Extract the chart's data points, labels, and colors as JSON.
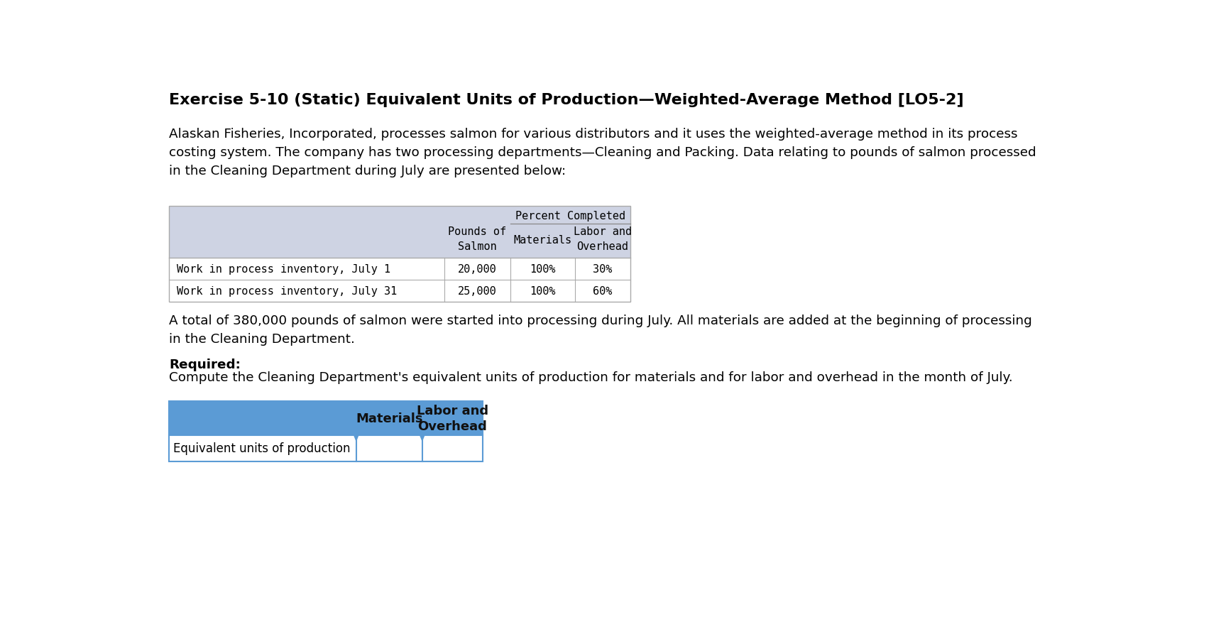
{
  "title": "Exercise 5-10 (Static) Equivalent Units of Production—Weighted-Average Method [LO5-2]",
  "body_text": "Alaskan Fisheries, Incorporated, processes salmon for various distributors and it uses the weighted-average method in its process\ncosting system. The company has two processing departments—Cleaning and Packing. Data relating to pounds of salmon processed\nin the Cleaning Department during July are presented below:",
  "table1_header_bg": "#ced3e3",
  "table1_percent_label": "Percent Completed",
  "table1_rows": [
    [
      "Work in process inventory, July 1",
      "20,000",
      "100%",
      "30%"
    ],
    [
      "Work in process inventory, July 31",
      "25,000",
      "100%",
      "60%"
    ]
  ],
  "middle_text": "A total of 380,000 pounds of salmon were started into processing during July. All materials are added at the beginning of processing\nin the Cleaning Department.",
  "required_label": "Required:",
  "required_text": "Compute the Cleaning Department's equivalent units of production for materials and for labor and overhead in the month of July.",
  "table2_header_bg": "#5b9bd5",
  "table2_row_label": "Equivalent units of production",
  "bg_color": "#ffffff",
  "text_color": "#000000",
  "monospace_font": "DejaVu Sans Mono",
  "sans_font": "DejaVu Sans"
}
